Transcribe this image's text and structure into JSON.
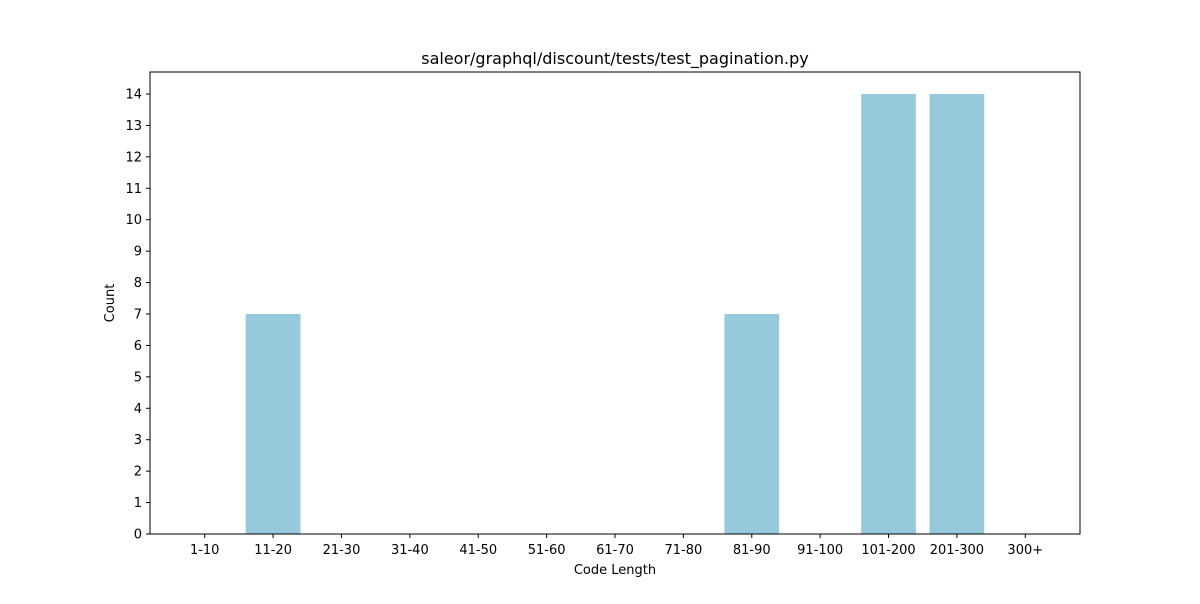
{
  "chart_data": {
    "type": "bar",
    "title": "saleor/graphql/discount/tests/test_pagination.py",
    "xlabel": "Code Length",
    "ylabel": "Count",
    "categories": [
      "1-10",
      "11-20",
      "21-30",
      "31-40",
      "41-50",
      "51-60",
      "61-70",
      "71-80",
      "81-90",
      "91-100",
      "101-200",
      "201-300",
      "300+"
    ],
    "values": [
      0,
      7,
      0,
      0,
      0,
      0,
      0,
      0,
      7,
      0,
      14,
      14,
      0
    ],
    "ylim": [
      0,
      14.7
    ],
    "yticks": [
      0,
      1,
      2,
      3,
      4,
      5,
      6,
      7,
      8,
      9,
      10,
      11,
      12,
      13,
      14
    ],
    "bar_color": "#96c9dc",
    "grid": false,
    "legend": "none"
  }
}
